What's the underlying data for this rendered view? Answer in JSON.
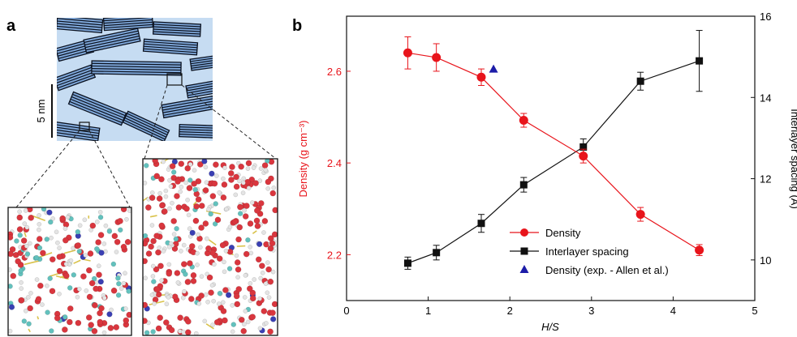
{
  "panel_a": {
    "label": "a",
    "scale_bar_label": "5 nm",
    "colors": {
      "background": "#c6dcf2",
      "stack": "#7fa8da",
      "stack_lines": "#0b1220",
      "frame": "#222222",
      "oxygen": "#d9363e",
      "hydrogen": "#e4e4e4",
      "silicon": "#d9c24a",
      "calcium": "#62c1bd",
      "blue_ion": "#3a3fb3"
    }
  },
  "panel_b": {
    "label": "b"
  },
  "chart_data": {
    "type": "line",
    "xlabel": "H/S",
    "ylabel_left": "Density (g cm⁻³)",
    "ylabel_right": "Interlayer spacing (Å)",
    "xlim": [
      0,
      5
    ],
    "ylim_left": [
      2.1,
      2.72
    ],
    "ylim_right": [
      9,
      16
    ],
    "xticks": [
      "0",
      "1",
      "2",
      "3",
      "4",
      "5"
    ],
    "yticks_left": [
      "2.2",
      "2.4",
      "2.6"
    ],
    "yticks_right": [
      "10",
      "12",
      "14",
      "16"
    ],
    "colors": {
      "density": "#e8141b",
      "spacing": "#111111",
      "experiment": "#1c1ca8"
    },
    "legend_position": "bottom-center",
    "series": [
      {
        "name": "Density",
        "axis": "left",
        "x": [
          0.75,
          1.1,
          1.65,
          2.17,
          2.9,
          3.6,
          4.32
        ],
        "y": [
          2.64,
          2.63,
          2.587,
          2.493,
          2.415,
          2.288,
          2.21
        ],
        "err": [
          0.035,
          0.03,
          0.018,
          0.015,
          0.015,
          0.015,
          0.012
        ]
      },
      {
        "name": "Interlayer spacing",
        "axis": "right",
        "x": [
          0.75,
          1.1,
          1.65,
          2.17,
          2.9,
          3.6,
          4.32
        ],
        "y": [
          9.92,
          10.18,
          10.9,
          11.85,
          12.78,
          14.4,
          14.9
        ],
        "err": [
          0.15,
          0.18,
          0.22,
          0.18,
          0.2,
          0.22,
          0.75
        ]
      },
      {
        "name": "Density (exp. - Allen et al.)",
        "axis": "left",
        "x": [
          1.8
        ],
        "y": [
          2.604
        ],
        "err": []
      }
    ]
  }
}
